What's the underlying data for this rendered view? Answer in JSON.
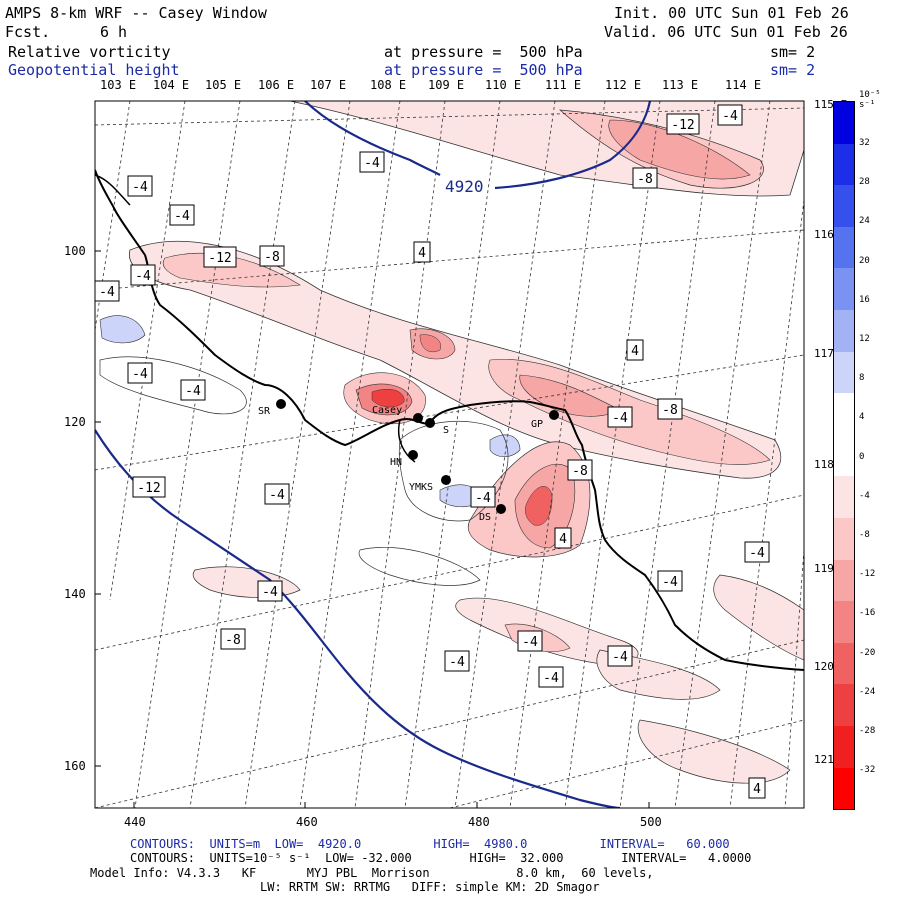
{
  "header": {
    "title": "AMPS 8-km WRF -- Casey Window",
    "fcst_label": "Fcst.",
    "fcst_value": "6 h",
    "init": "Init. 00 UTC Sun 01 Feb 26",
    "valid": "Valid. 06 UTC Sun 01 Feb 26",
    "field1": {
      "name": "Relative vorticity",
      "level": "at pressure =  500 hPa",
      "sm": "sm= 2"
    },
    "field2": {
      "name": "Geopotential height",
      "level": "at pressure =  500 hPa",
      "sm": "sm= 2"
    }
  },
  "top_lon_labels": [
    "103 E",
    "104 E",
    "105 E",
    "106 E",
    "107 E",
    "108 E",
    "109 E",
    "110 E",
    "111 E",
    "112 E",
    "113 E",
    "114 E"
  ],
  "right_lon_labels": [
    "115 E",
    "116 E",
    "117 E",
    "118 E",
    "119 E",
    "120 E",
    "121 E"
  ],
  "x_ticks": [
    "440",
    "460",
    "480",
    "500"
  ],
  "y_ticks": [
    "100",
    "120",
    "140",
    "160"
  ],
  "colorbar": {
    "unit_label": "10⁻⁵ s⁻¹",
    "labels": [
      "32",
      "28",
      "24",
      "20",
      "16",
      "12",
      "8",
      "4",
      "0",
      "-4",
      "-8",
      "-12",
      "-16",
      "-20",
      "-24",
      "-28",
      "-32"
    ],
    "colors": [
      "#0000e0",
      "#1d2ee8",
      "#3550ec",
      "#5572ef",
      "#7a92f2",
      "#a3b2f5",
      "#ccd4f9",
      "#ffffff",
      "#ffffff",
      "#fde4e4",
      "#fbc7c7",
      "#f7a6a6",
      "#f38484",
      "#f06262",
      "#ee4040",
      "#f02020",
      "#ff0000"
    ]
  },
  "stations": [
    {
      "code": "SR"
    },
    {
      "code": "Casey"
    },
    {
      "code": "S"
    },
    {
      "code": "HN"
    },
    {
      "code": "YMKS"
    },
    {
      "code": "DS"
    },
    {
      "code": "GP"
    }
  ],
  "height_contour_label": "4920",
  "vorticity_labels": [
    "-4",
    "-4",
    "-8",
    "-12",
    "-4",
    "-12",
    "-8",
    "-4",
    "4",
    "-4",
    "-4",
    "-4",
    "-4",
    "-12",
    "-4",
    "-8",
    "-8",
    "4",
    "-4",
    "-4",
    "-4",
    "-4",
    "-8",
    "-4",
    "-4",
    "-4",
    "-4",
    "-4",
    "4",
    "4"
  ],
  "footer": {
    "line1": "CONTOURS:  UNITS=m  LOW=  4920.0          HIGH=  4980.0          INTERVAL=   60.000",
    "line2": "CONTOURS:  UNITS=10⁻⁵ s⁻¹  LOW= -32.000        HIGH=  32.000        INTERVAL=   4.0000",
    "line3": "Model Info: V4.3.3   KF       MYJ PBL  Morrison            8.0 km,  60 levels,",
    "line4": "LW: RRTM SW: RRTMG   DIFF: simple KM: 2D Smagor"
  }
}
